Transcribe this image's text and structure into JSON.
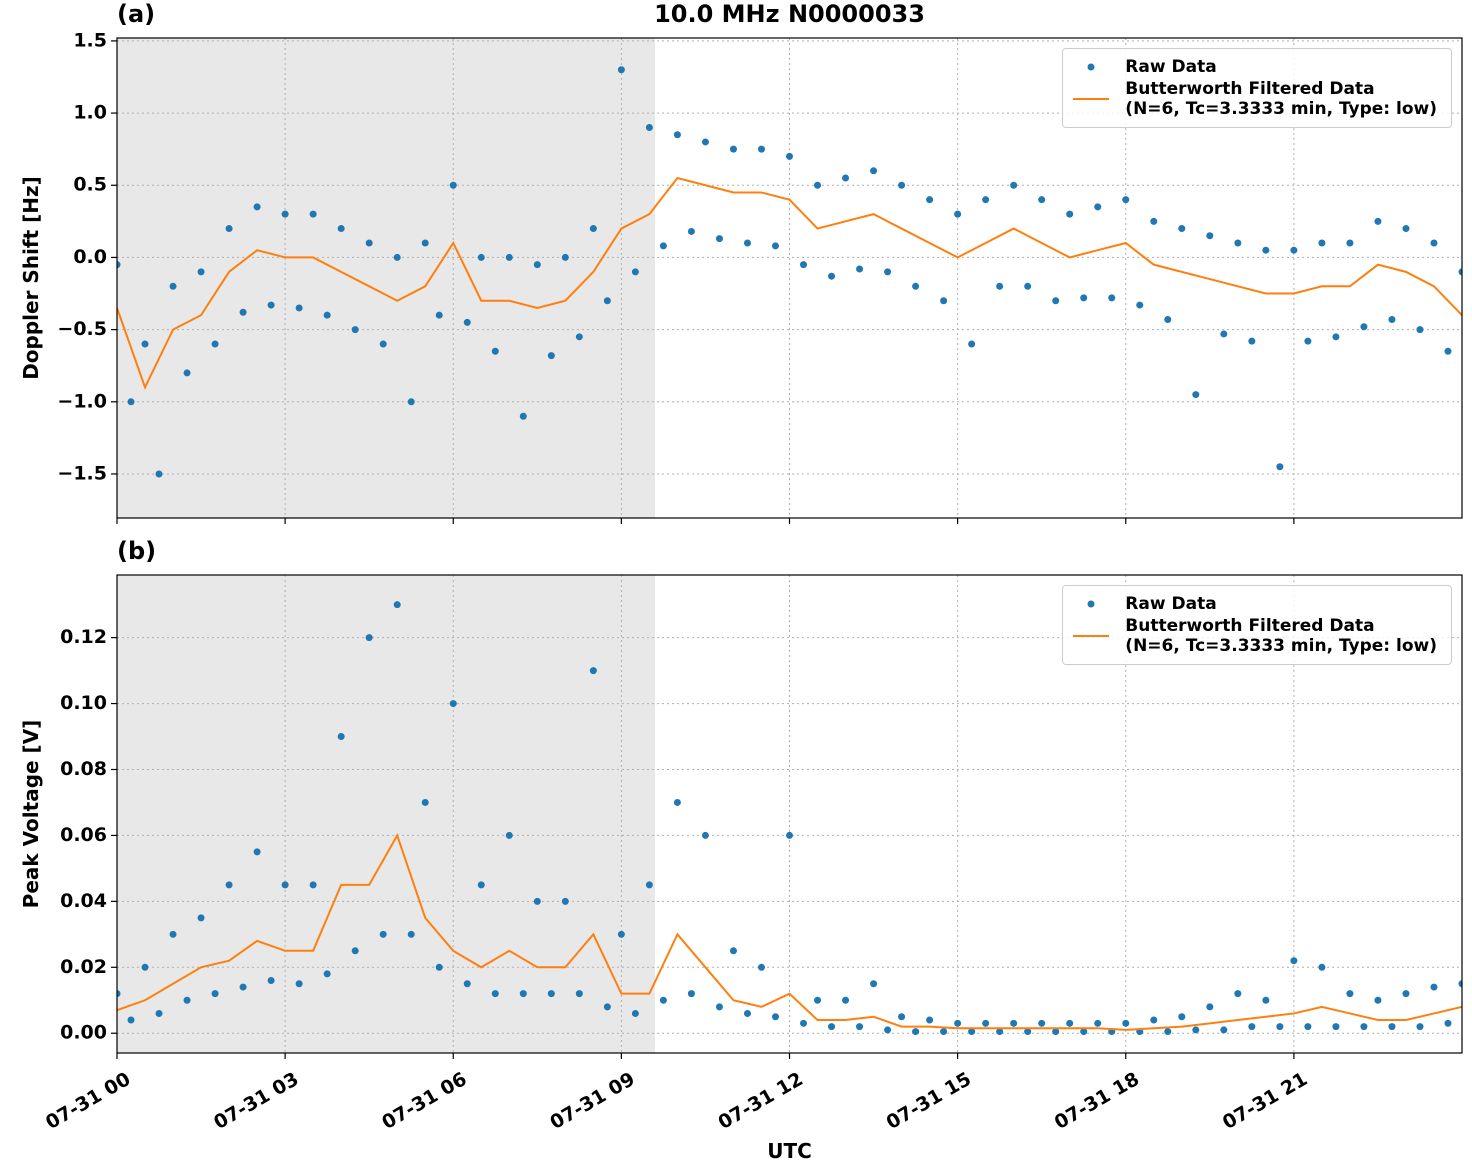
{
  "chart_data": [
    {
      "type": "line",
      "title": "10.0 MHz N0000033",
      "panel_label": "(a)",
      "ylabel": "Doppler Shift [Hz]",
      "xlim": [
        0,
        24
      ],
      "ylim": [
        -1.805,
        1.52
      ],
      "xticks": [
        0,
        3,
        6,
        9,
        12,
        15,
        18,
        21
      ],
      "yticks": [
        {
          "value": -1.5,
          "label": "−1.5"
        },
        {
          "value": -1.0,
          "label": "−1.0"
        },
        {
          "value": -0.5,
          "label": "−0.5"
        },
        {
          "value": 0,
          "label": "0.0"
        },
        {
          "value": 0.5,
          "label": "0.5"
        },
        {
          "value": 1.0,
          "label": "1.0"
        },
        {
          "value": 1.5,
          "label": "1.5"
        }
      ],
      "grid": true,
      "legend": "upper right",
      "shaded_xrange": [
        0,
        9.6
      ],
      "series": [
        {
          "name": "Raw Data",
          "type": "scatter",
          "color": "#1f77b4",
          "x": [
            0,
            0.25,
            0.5,
            0.75,
            1,
            1.25,
            1.5,
            1.75,
            2,
            2.25,
            2.5,
            2.75,
            3,
            3.25,
            3.5,
            3.75,
            4,
            4.25,
            4.5,
            4.75,
            5,
            5.25,
            5.5,
            5.75,
            6,
            6.25,
            6.5,
            6.75,
            7,
            7.25,
            7.5,
            7.75,
            8,
            8.25,
            8.5,
            8.75,
            9,
            9.25,
            9.5,
            9.75,
            10,
            10.25,
            10.5,
            10.75,
            11,
            11.25,
            11.5,
            11.75,
            12,
            12.25,
            12.5,
            12.75,
            13,
            13.25,
            13.5,
            13.75,
            14,
            14.25,
            14.5,
            14.75,
            15,
            15.25,
            15.5,
            15.75,
            16,
            16.25,
            16.5,
            16.75,
            17,
            17.25,
            17.5,
            17.75,
            18,
            18.25,
            18.5,
            18.75,
            19,
            19.25,
            19.5,
            19.75,
            20,
            20.25,
            20.5,
            20.75,
            21,
            21.25,
            21.5,
            21.75,
            22,
            22.25,
            22.5,
            22.75,
            23,
            23.25,
            23.5,
            23.75,
            24
          ],
          "values": [
            -0.05,
            -1.0,
            -0.6,
            -1.5,
            -0.2,
            -0.8,
            -0.1,
            -0.6,
            0.2,
            -0.38,
            0.35,
            -0.33,
            0.3,
            -0.35,
            0.3,
            -0.4,
            0.2,
            -0.5,
            0.1,
            -0.6,
            0.0,
            -1.0,
            0.1,
            -0.4,
            0.5,
            -0.45,
            0.0,
            -0.65,
            0.0,
            -1.1,
            -0.05,
            -0.68,
            0.0,
            -0.55,
            0.2,
            -0.3,
            1.3,
            -0.1,
            0.9,
            0.08,
            0.85,
            0.18,
            0.8,
            0.13,
            0.75,
            0.1,
            0.75,
            0.08,
            0.7,
            -0.05,
            0.5,
            -0.13,
            0.55,
            -0.08,
            0.6,
            -0.1,
            0.5,
            -0.2,
            0.4,
            -0.3,
            0.3,
            -0.6,
            0.4,
            -0.2,
            0.5,
            -0.2,
            0.4,
            -0.3,
            0.3,
            -0.28,
            0.35,
            -0.28,
            0.4,
            -0.33,
            0.25,
            -0.43,
            0.2,
            -0.95,
            0.15,
            -0.53,
            0.1,
            -0.58,
            0.05,
            -1.45,
            0.05,
            -0.58,
            0.1,
            -0.55,
            0.1,
            -0.48,
            0.25,
            -0.43,
            0.2,
            -0.5,
            0.1,
            -0.65,
            -0.1
          ]
        },
        {
          "name": "Butterworth Filtered Data\n(N=6, Tc=3.3333 min, Type: low)",
          "type": "line",
          "color": "#ff7f0e",
          "x": [
            0,
            0.5,
            1,
            1.5,
            2,
            2.5,
            3,
            3.5,
            4,
            4.5,
            5,
            5.5,
            6,
            6.5,
            7,
            7.5,
            8,
            8.5,
            9,
            9.5,
            10,
            10.5,
            11,
            11.5,
            12,
            12.5,
            13,
            13.5,
            14,
            14.5,
            15,
            15.5,
            16,
            16.5,
            17,
            17.5,
            18,
            18.5,
            19,
            19.5,
            20,
            20.5,
            21,
            21.5,
            22,
            22.5,
            23,
            23.5,
            24
          ],
          "values": [
            -0.35,
            -0.9,
            -0.5,
            -0.4,
            -0.1,
            0.05,
            0.0,
            0.0,
            -0.1,
            -0.2,
            -0.3,
            -0.2,
            0.1,
            -0.3,
            -0.3,
            -0.35,
            -0.3,
            -0.1,
            0.2,
            0.3,
            0.55,
            0.5,
            0.45,
            0.45,
            0.4,
            0.2,
            0.25,
            0.3,
            0.2,
            0.1,
            0.0,
            0.1,
            0.2,
            0.1,
            0.0,
            0.05,
            0.1,
            -0.05,
            -0.1,
            -0.15,
            -0.2,
            -0.25,
            -0.25,
            -0.2,
            -0.2,
            -0.05,
            -0.1,
            -0.2,
            -0.4
          ]
        }
      ]
    },
    {
      "type": "line",
      "panel_label": "(b)",
      "ylabel": "Peak Voltage [V]",
      "xlabel": "UTC",
      "xlim": [
        0,
        24
      ],
      "ylim": [
        -0.006,
        0.139
      ],
      "xticks": [
        {
          "value": 0,
          "label": "07-31 00"
        },
        {
          "value": 3,
          "label": "07-31 03"
        },
        {
          "value": 6,
          "label": "07-31 06"
        },
        {
          "value": 9,
          "label": "07-31 09"
        },
        {
          "value": 12,
          "label": "07-31 12"
        },
        {
          "value": 15,
          "label": "07-31 15"
        },
        {
          "value": 18,
          "label": "07-31 18"
        },
        {
          "value": 21,
          "label": "07-31 21"
        }
      ],
      "yticks": [
        {
          "value": 0,
          "label": "0.00"
        },
        {
          "value": 0.02,
          "label": "0.02"
        },
        {
          "value": 0.04,
          "label": "0.04"
        },
        {
          "value": 0.06,
          "label": "0.06"
        },
        {
          "value": 0.08,
          "label": "0.08"
        },
        {
          "value": 0.1,
          "label": "0.10"
        },
        {
          "value": 0.12,
          "label": "0.12"
        }
      ],
      "grid": true,
      "legend": "upper right",
      "shaded_xrange": [
        0,
        9.6
      ],
      "series": [
        {
          "name": "Raw Data",
          "type": "scatter",
          "color": "#1f77b4",
          "x": [
            0,
            0.25,
            0.5,
            0.75,
            1,
            1.25,
            1.5,
            1.75,
            2,
            2.25,
            2.5,
            2.75,
            3,
            3.25,
            3.5,
            3.75,
            4,
            4.25,
            4.5,
            4.75,
            5,
            5.25,
            5.5,
            5.75,
            6,
            6.25,
            6.5,
            6.75,
            7,
            7.25,
            7.5,
            7.75,
            8,
            8.25,
            8.5,
            8.75,
            9,
            9.25,
            9.5,
            9.75,
            10,
            10.25,
            10.5,
            10.75,
            11,
            11.25,
            11.5,
            11.75,
            12,
            12.25,
            12.5,
            12.75,
            13,
            13.25,
            13.5,
            13.75,
            14,
            14.25,
            14.5,
            14.75,
            15,
            15.25,
            15.5,
            15.75,
            16,
            16.25,
            16.5,
            16.75,
            17,
            17.25,
            17.5,
            17.75,
            18,
            18.25,
            18.5,
            18.75,
            19,
            19.25,
            19.5,
            19.75,
            20,
            20.25,
            20.5,
            20.75,
            21,
            21.25,
            21.5,
            21.75,
            22,
            22.25,
            22.5,
            22.75,
            23,
            23.25,
            23.5,
            23.75,
            24
          ],
          "values": [
            0.012,
            0.004,
            0.02,
            0.006,
            0.03,
            0.01,
            0.035,
            0.012,
            0.045,
            0.014,
            0.055,
            0.016,
            0.045,
            0.015,
            0.045,
            0.018,
            0.09,
            0.025,
            0.12,
            0.03,
            0.13,
            0.03,
            0.07,
            0.02,
            0.1,
            0.015,
            0.045,
            0.012,
            0.06,
            0.012,
            0.04,
            0.012,
            0.04,
            0.012,
            0.11,
            0.008,
            0.03,
            0.006,
            0.045,
            0.01,
            0.07,
            0.012,
            0.06,
            0.008,
            0.025,
            0.006,
            0.02,
            0.005,
            0.06,
            0.003,
            0.01,
            0.002,
            0.01,
            0.002,
            0.015,
            0.001,
            0.005,
            0.0005,
            0.004,
            0.0005,
            0.003,
            0.0005,
            0.003,
            0.0005,
            0.003,
            0.0005,
            0.003,
            0.0005,
            0.003,
            0.0005,
            0.003,
            0.0005,
            0.003,
            0.0005,
            0.004,
            0.0005,
            0.005,
            0.001,
            0.008,
            0.001,
            0.012,
            0.002,
            0.01,
            0.002,
            0.022,
            0.002,
            0.02,
            0.002,
            0.012,
            0.002,
            0.01,
            0.002,
            0.012,
            0.002,
            0.014,
            0.003,
            0.015
          ]
        },
        {
          "name": "Butterworth Filtered Data\n(N=6, Tc=3.3333 min, Type: low)",
          "type": "line",
          "color": "#ff7f0e",
          "x": [
            0,
            0.5,
            1,
            1.5,
            2,
            2.5,
            3,
            3.5,
            4,
            4.5,
            5,
            5.5,
            6,
            6.5,
            7,
            7.5,
            8,
            8.5,
            9,
            9.5,
            10,
            10.5,
            11,
            11.5,
            12,
            12.5,
            13,
            13.5,
            14,
            14.5,
            15,
            15.5,
            16,
            16.5,
            17,
            17.5,
            18,
            18.5,
            19,
            19.5,
            20,
            20.5,
            21,
            21.5,
            22,
            22.5,
            23,
            23.5,
            24
          ],
          "values": [
            0.007,
            0.01,
            0.015,
            0.02,
            0.022,
            0.028,
            0.025,
            0.025,
            0.045,
            0.045,
            0.06,
            0.035,
            0.025,
            0.02,
            0.025,
            0.02,
            0.02,
            0.03,
            0.012,
            0.012,
            0.03,
            0.02,
            0.01,
            0.008,
            0.012,
            0.004,
            0.004,
            0.005,
            0.002,
            0.002,
            0.0015,
            0.0015,
            0.0015,
            0.0015,
            0.0015,
            0.0015,
            0.001,
            0.0015,
            0.002,
            0.003,
            0.004,
            0.005,
            0.006,
            0.008,
            0.006,
            0.004,
            0.004,
            0.006,
            0.008
          ]
        }
      ]
    }
  ]
}
